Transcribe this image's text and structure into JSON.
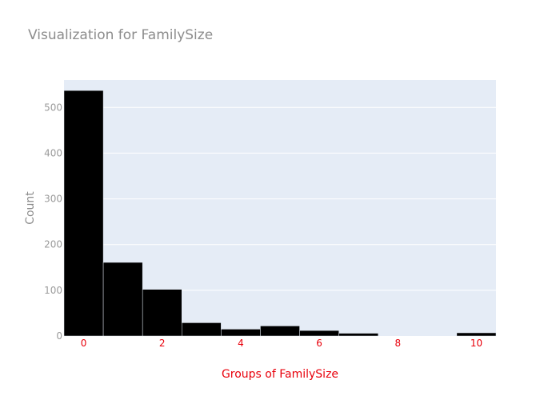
{
  "chart_data": {
    "type": "bar",
    "title": "Visualization for FamilySize",
    "xlabel": "Groups of FamilySize",
    "ylabel": "Count",
    "x": [
      0,
      1,
      2,
      3,
      4,
      5,
      6,
      7,
      8,
      9,
      10
    ],
    "values": [
      537,
      161,
      102,
      29,
      15,
      22,
      12,
      6,
      0,
      0,
      7
    ],
    "xlim": [
      -0.5,
      10.5
    ],
    "ylim": [
      0,
      560
    ],
    "xticks": [
      "0",
      "2",
      "4",
      "6",
      "8",
      "10"
    ],
    "yticks": [
      "0",
      "100",
      "200",
      "300",
      "400",
      "500"
    ],
    "grid": true,
    "legend": "none",
    "colors": {
      "bar": "#000000",
      "plot_background": "#e5ecf6",
      "gridline": "#ffffff",
      "title": "#8c8c8c",
      "x_axis_text": "#e8000b",
      "y_axis_text": "#9a9a9a"
    }
  }
}
